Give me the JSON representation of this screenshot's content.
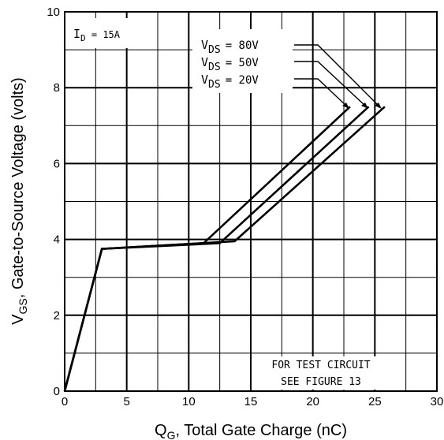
{
  "chart_data": {
    "type": "line",
    "xlabel": {
      "main": "Q",
      "sub": "G",
      "rest": ", Total Gate Charge (nC)"
    },
    "ylabel": {
      "main": "V",
      "sub": "GS",
      "rest": ", Gate-to-Source Voltage (volts)"
    },
    "xlim": [
      0,
      30
    ],
    "ylim": [
      0,
      10
    ],
    "x_ticks": [
      "0",
      "5",
      "10",
      "15",
      "20",
      "25",
      "30"
    ],
    "y_ticks": [
      "0",
      "2",
      "4",
      "6",
      "8",
      "10"
    ],
    "grid": true,
    "series": [
      {
        "name": "VDS = 80V",
        "vds_main": "V",
        "vds_sub": "DS",
        "vds_value": "=  80V",
        "points": [
          [
            0,
            0
          ],
          [
            3,
            3.75
          ],
          [
            13.7,
            3.95
          ],
          [
            25.8,
            7.5
          ]
        ]
      },
      {
        "name": "VDS = 50V",
        "vds_main": "V",
        "vds_sub": "DS",
        "vds_value": "=  50V",
        "points": [
          [
            0,
            0
          ],
          [
            3,
            3.75
          ],
          [
            12.5,
            3.9
          ],
          [
            24.5,
            7.5
          ]
        ]
      },
      {
        "name": "VDS = 20V",
        "vds_main": "V",
        "vds_sub": "DS",
        "vds_value": "=  20V",
        "points": [
          [
            0,
            0
          ],
          [
            3,
            3.75
          ],
          [
            11.2,
            3.9
          ],
          [
            23,
            7.5
          ]
        ]
      }
    ],
    "annotations": {
      "id_main": "I",
      "id_sub": "D",
      "id_value": " =  15A",
      "note_line1": "FOR TEST CIRCUIT",
      "note_line2": "SEE FIGURE 13"
    }
  }
}
